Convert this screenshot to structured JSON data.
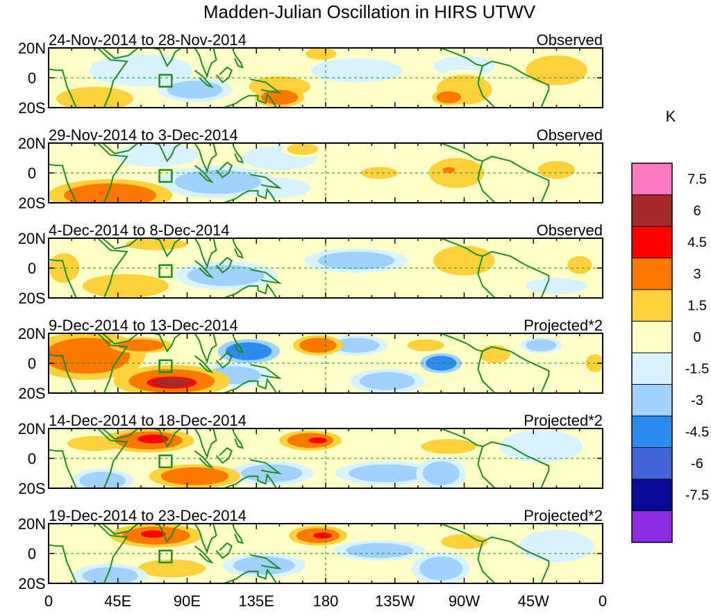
{
  "chart_data": {
    "type": "heatmap",
    "title": "Madden-Julian Oscillation in HIRS UTWV",
    "units_label": "K",
    "lat_ticks": [
      "20N",
      "0",
      "20S"
    ],
    "lon_ticks": [
      "0",
      "45E",
      "90E",
      "135E",
      "180",
      "135W",
      "90W",
      "45W",
      "0"
    ],
    "lon_range": [
      0,
      360
    ],
    "lat_range": [
      -20,
      20
    ],
    "colorbar": {
      "levels": [
        "7.5",
        "6",
        "4.5",
        "3",
        "1.5",
        "0",
        "-1.5",
        "-3",
        "-4.5",
        "-6",
        "-7.5"
      ],
      "colors": [
        "#ff77c0",
        "#a52a2a",
        "#ff0000",
        "#ff7800",
        "#ffd23c",
        "#ffffc8",
        "#d7f3ff",
        "#a0d2ff",
        "#2b8bf0",
        "#4464d8",
        "#0a0a96",
        "#8c2ce6"
      ]
    },
    "panels": [
      {
        "date": "24-Nov-2014 to 28-Nov-2014",
        "kind": "Observed",
        "anomalies": [
          {
            "lon": 30,
            "lat": -14,
            "rx": 25,
            "ry": 8,
            "v": 2.5
          },
          {
            "lon": 95,
            "lat": -8,
            "rx": 18,
            "ry": 6,
            "v": -2.5
          },
          {
            "lon": 60,
            "lat": 5,
            "rx": 25,
            "ry": 8,
            "v": -1.5
          },
          {
            "lon": 150,
            "lat": -6,
            "rx": 20,
            "ry": 7,
            "v": 2
          },
          {
            "lon": 150,
            "lat": -13,
            "rx": 12,
            "ry": 5,
            "v": 3.2
          },
          {
            "lon": 177,
            "lat": 16,
            "rx": 10,
            "ry": 4,
            "v": 2.5
          },
          {
            "lon": 200,
            "lat": 5,
            "rx": 22,
            "ry": 6,
            "v": -1.5
          },
          {
            "lon": 270,
            "lat": -8,
            "rx": 18,
            "ry": 10,
            "v": 2
          },
          {
            "lon": 260,
            "lat": -13,
            "rx": 8,
            "ry": 4,
            "v": 3.5
          },
          {
            "lon": 270,
            "lat": 8,
            "rx": 15,
            "ry": 5,
            "v": -1.5
          },
          {
            "lon": 330,
            "lat": 5,
            "rx": 20,
            "ry": 10,
            "v": 1.5
          }
        ]
      },
      {
        "date": "29-Nov-2014 to 3-Dec-2014",
        "kind": "Observed",
        "anomalies": [
          {
            "lon": 40,
            "lat": -15,
            "rx": 30,
            "ry": 8,
            "v": 3
          },
          {
            "lon": 110,
            "lat": -6,
            "rx": 28,
            "ry": 8,
            "v": -1.8
          },
          {
            "lon": 70,
            "lat": 12,
            "rx": 20,
            "ry": 6,
            "v": -1.5
          },
          {
            "lon": 150,
            "lat": 10,
            "rx": 18,
            "ry": 6,
            "v": -1.5
          },
          {
            "lon": 150,
            "lat": -10,
            "rx": 15,
            "ry": 5,
            "v": -1.5
          },
          {
            "lon": 165,
            "lat": 16,
            "rx": 10,
            "ry": 4,
            "v": 1.6
          },
          {
            "lon": 215,
            "lat": 0,
            "rx": 12,
            "ry": 4,
            "v": 1.5
          },
          {
            "lon": 265,
            "lat": 0,
            "rx": 18,
            "ry": 10,
            "v": 1.8
          },
          {
            "lon": 260,
            "lat": 2,
            "rx": 4,
            "ry": 2,
            "v": 3.2
          },
          {
            "lon": 330,
            "lat": 2,
            "rx": 12,
            "ry": 6,
            "v": 1.6
          }
        ]
      },
      {
        "date": "4-Dec-2014 to 8-Dec-2014",
        "kind": "Observed",
        "anomalies": [
          {
            "lon": 50,
            "lat": -12,
            "rx": 28,
            "ry": 8,
            "v": 2.5
          },
          {
            "lon": 10,
            "lat": 0,
            "rx": 10,
            "ry": 10,
            "v": 1.5
          },
          {
            "lon": 70,
            "lat": 16,
            "rx": 20,
            "ry": 4,
            "v": 1.5
          },
          {
            "lon": 115,
            "lat": -5,
            "rx": 25,
            "ry": 7,
            "v": -1.6
          },
          {
            "lon": 200,
            "lat": 5,
            "rx": 25,
            "ry": 6,
            "v": -1.6
          },
          {
            "lon": 270,
            "lat": 5,
            "rx": 20,
            "ry": 10,
            "v": 1.6
          },
          {
            "lon": 345,
            "lat": 2,
            "rx": 8,
            "ry": 6,
            "v": 1.5
          },
          {
            "lon": 330,
            "lat": -12,
            "rx": 15,
            "ry": 4,
            "v": -1.5
          }
        ]
      },
      {
        "date": "9-Dec-2014 to 13-Dec-2014",
        "kind": "Projected*2",
        "anomalies": [
          {
            "lon": 25,
            "lat": 5,
            "rx": 28,
            "ry": 12,
            "v": 3
          },
          {
            "lon": 60,
            "lat": 12,
            "rx": 15,
            "ry": 4,
            "v": 4
          },
          {
            "lon": 80,
            "lat": -12,
            "rx": 28,
            "ry": 8,
            "v": 3.5
          },
          {
            "lon": 80,
            "lat": -13,
            "rx": 12,
            "ry": 3,
            "v": 6.5
          },
          {
            "lon": 130,
            "lat": 8,
            "rx": 15,
            "ry": 6,
            "v": -3.5
          },
          {
            "lon": 120,
            "lat": -8,
            "rx": 18,
            "ry": 6,
            "v": -2.5
          },
          {
            "lon": 175,
            "lat": 12,
            "rx": 12,
            "ry": 5,
            "v": 3.5
          },
          {
            "lon": 220,
            "lat": -12,
            "rx": 18,
            "ry": 6,
            "v": -2.5
          },
          {
            "lon": 200,
            "lat": 12,
            "rx": 15,
            "ry": 5,
            "v": -1.8
          },
          {
            "lon": 245,
            "lat": 12,
            "rx": 12,
            "ry": 4,
            "v": 2.5
          },
          {
            "lon": 255,
            "lat": 0,
            "rx": 10,
            "ry": 5,
            "v": -3.5
          },
          {
            "lon": 290,
            "lat": 6,
            "rx": 10,
            "ry": 6,
            "v": 2
          },
          {
            "lon": 320,
            "lat": 12,
            "rx": 10,
            "ry": 4,
            "v": -2
          },
          {
            "lon": 355,
            "lat": 0,
            "rx": 6,
            "ry": 6,
            "v": 2.5
          }
        ]
      },
      {
        "date": "14-Dec-2014 to 18-Dec-2014",
        "kind": "Projected*2",
        "anomalies": [
          {
            "lon": 65,
            "lat": 12,
            "rx": 22,
            "ry": 6,
            "v": 3.5
          },
          {
            "lon": 68,
            "lat": 13,
            "rx": 10,
            "ry": 3,
            "v": 4.8
          },
          {
            "lon": 95,
            "lat": -12,
            "rx": 22,
            "ry": 6,
            "v": 3.5
          },
          {
            "lon": 30,
            "lat": 10,
            "rx": 18,
            "ry": 5,
            "v": 2
          },
          {
            "lon": 35,
            "lat": -15,
            "rx": 15,
            "ry": 6,
            "v": -2.5
          },
          {
            "lon": 170,
            "lat": 12,
            "rx": 15,
            "ry": 5,
            "v": 3
          },
          {
            "lon": 175,
            "lat": 12,
            "rx": 6,
            "ry": 2,
            "v": 4.5
          },
          {
            "lon": 145,
            "lat": -10,
            "rx": 20,
            "ry": 6,
            "v": -2.5
          },
          {
            "lon": 220,
            "lat": -10,
            "rx": 25,
            "ry": 6,
            "v": -1.8
          },
          {
            "lon": 255,
            "lat": -10,
            "rx": 12,
            "ry": 8,
            "v": -2.6
          },
          {
            "lon": 260,
            "lat": 8,
            "rx": 18,
            "ry": 5,
            "v": 1.6
          },
          {
            "lon": 320,
            "lat": 8,
            "rx": 20,
            "ry": 8,
            "v": -1.5
          }
        ]
      },
      {
        "date": "19-Dec-2014 to 23-Dec-2014",
        "kind": "Projected*2",
        "anomalies": [
          {
            "lon": 70,
            "lat": 12,
            "rx": 22,
            "ry": 6,
            "v": 3.2
          },
          {
            "lon": 68,
            "lat": 13,
            "rx": 8,
            "ry": 2.5,
            "v": 4.6
          },
          {
            "lon": 80,
            "lat": -10,
            "rx": 22,
            "ry": 6,
            "v": 2
          },
          {
            "lon": 40,
            "lat": -15,
            "rx": 18,
            "ry": 6,
            "v": -2.5
          },
          {
            "lon": 175,
            "lat": 12,
            "rx": 14,
            "ry": 5,
            "v": 3
          },
          {
            "lon": 178,
            "lat": 12,
            "rx": 6,
            "ry": 2,
            "v": 4.6
          },
          {
            "lon": 140,
            "lat": -8,
            "rx": 20,
            "ry": 6,
            "v": -2.5
          },
          {
            "lon": 215,
            "lat": 2,
            "rx": 22,
            "ry": 5,
            "v": -1.8
          },
          {
            "lon": 255,
            "lat": -10,
            "rx": 14,
            "ry": 8,
            "v": -2.6
          },
          {
            "lon": 270,
            "lat": 8,
            "rx": 15,
            "ry": 5,
            "v": 1.6
          },
          {
            "lon": 330,
            "lat": 5,
            "rx": 18,
            "ry": 8,
            "v": -1.5
          }
        ]
      }
    ]
  }
}
